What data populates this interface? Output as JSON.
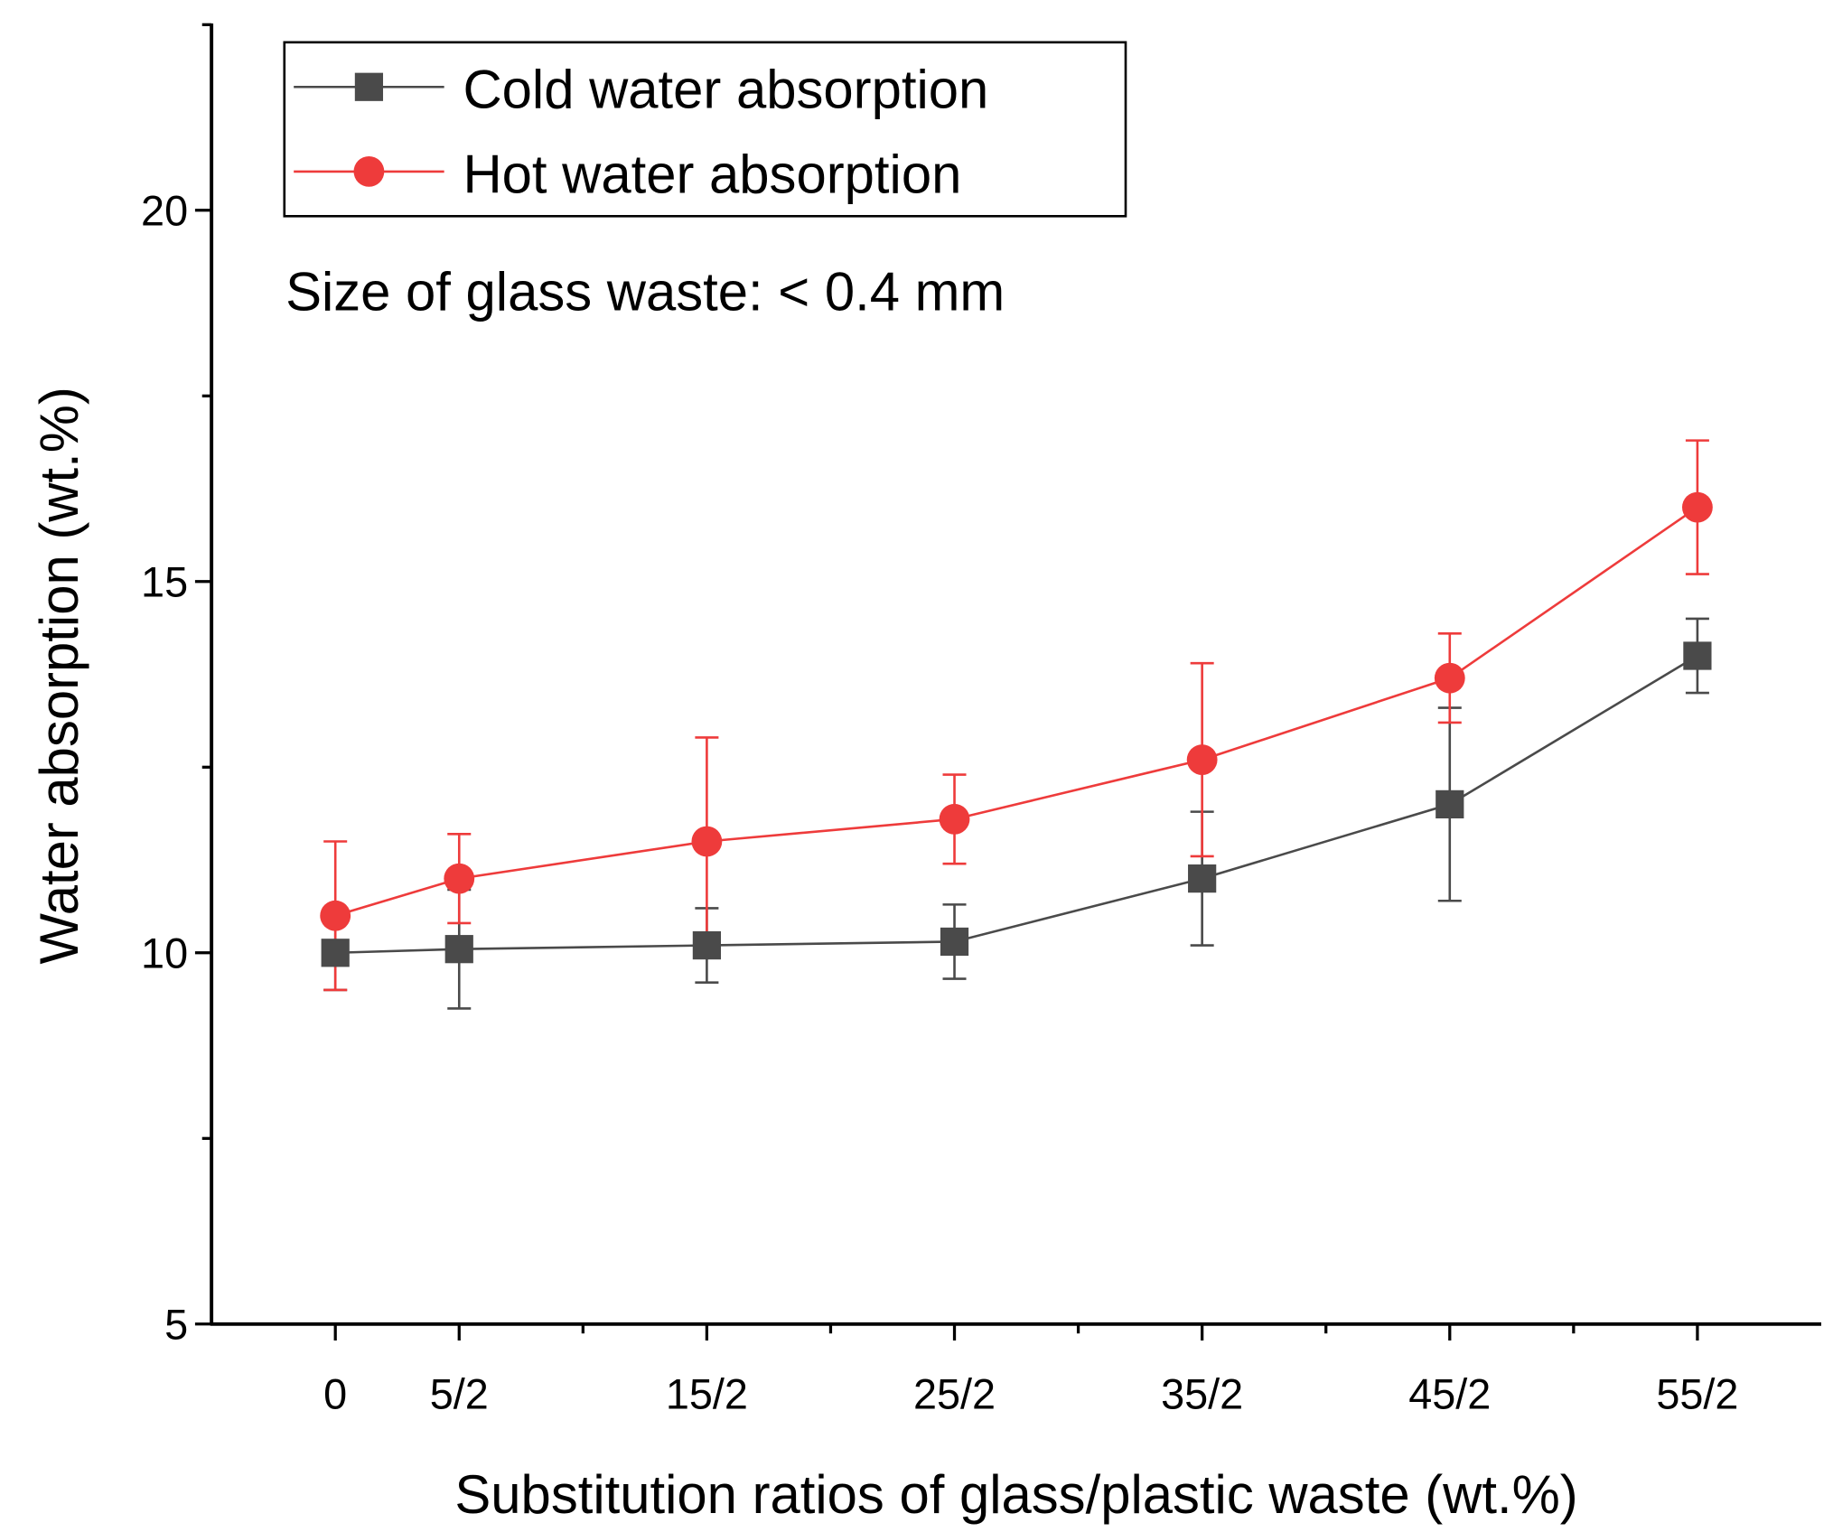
{
  "chart_data": {
    "type": "line",
    "title": "",
    "xlabel": "Substitution ratios of glass/plastic waste (wt.%)",
    "ylabel": "Water absorption (wt.%)",
    "annotation": "Size of glass waste: < 0.4 mm",
    "x_positions": [
      0,
      1,
      3,
      5,
      7,
      9,
      11
    ],
    "categories": [
      "0",
      "5/2",
      "15/2",
      "25/2",
      "35/2",
      "45/2",
      "55/2"
    ],
    "xlim": [
      -1,
      12
    ],
    "ylim": [
      5,
      22.5
    ],
    "yticks": [
      5,
      10,
      15,
      20
    ],
    "ytick_labels": [
      "5",
      "10",
      "15",
      "20"
    ],
    "legend_position": "top-left",
    "grid": false,
    "series": [
      {
        "name": "Cold water absorption",
        "color": "#4a4a4a",
        "marker": "square",
        "values": [
          10.0,
          10.05,
          10.1,
          10.15,
          11.0,
          12.0,
          14.0
        ],
        "errors": [
          0.5,
          0.8,
          0.5,
          0.5,
          0.9,
          1.3,
          0.5
        ]
      },
      {
        "name": "Hot water absorption",
        "color": "#ee3b3b",
        "marker": "circle",
        "values": [
          10.5,
          11.0,
          11.5,
          11.8,
          12.6,
          13.7,
          16.0
        ],
        "errors": [
          1.0,
          0.6,
          1.4,
          0.6,
          1.3,
          0.6,
          0.9
        ]
      }
    ]
  }
}
